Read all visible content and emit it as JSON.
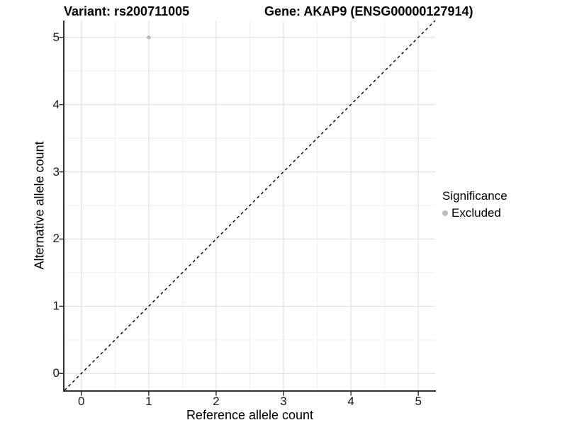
{
  "titles": {
    "variant": "Variant: rs200711005",
    "gene": "Gene: AKAP9 (ENSG00000127914)"
  },
  "axes": {
    "x": {
      "label": "Reference allele count"
    },
    "y": {
      "label": "Alternative allele count"
    }
  },
  "legend": {
    "title": "Significance",
    "items": [
      {
        "label": "Excluded",
        "color": "#bdbdbd",
        "marker": "circle"
      }
    ]
  },
  "colors": {
    "background": "#ffffff",
    "grid_major": "#e5e5e5",
    "grid_minor": "#efefef",
    "axis_line": "#333333",
    "tick_mark": "#333333",
    "reference_line": "#000000",
    "point": "#bdbdbd",
    "text": "#000000"
  },
  "chart_data": {
    "type": "scatter",
    "title": "Variant: rs200711005 | Gene: AKAP9 (ENSG00000127914)",
    "xlabel": "Reference allele count",
    "ylabel": "Alternative allele count",
    "xlim": [
      -0.25,
      5.25
    ],
    "ylim": [
      -0.25,
      5.25
    ],
    "x_major_ticks": [
      0,
      1,
      2,
      3,
      4,
      5
    ],
    "y_major_ticks": [
      0,
      1,
      2,
      3,
      4,
      5
    ],
    "x_minor_ticks": [
      0.5,
      1.5,
      2.5,
      3.5,
      4.5
    ],
    "y_minor_ticks": [
      0.5,
      1.5,
      2.5,
      3.5,
      4.5
    ],
    "x_tick_labels": [
      "0",
      "1",
      "2",
      "3",
      "4",
      "5"
    ],
    "y_tick_labels": [
      "0",
      "1",
      "2",
      "3",
      "4",
      "5"
    ],
    "grid": true,
    "legend_position": "right",
    "series": [
      {
        "name": "Excluded",
        "color": "#bdbdbd",
        "points": [
          {
            "x": 1,
            "y": 5
          }
        ]
      }
    ],
    "reference_line": {
      "description": "identity line y = x",
      "style": "dashed",
      "color": "#000000",
      "from": [
        -0.25,
        -0.25
      ],
      "to": [
        5.25,
        5.25
      ]
    }
  }
}
